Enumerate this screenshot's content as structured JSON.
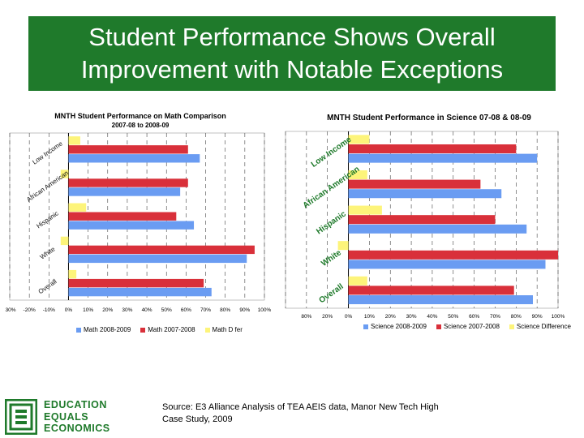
{
  "slide": {
    "title_line1": "Student Performance Shows Overall",
    "title_line2": "Improvement with Notable Exceptions",
    "source_line1": "Source:  E3 Alliance Analysis of TEA AEIS data, Manor New Tech High",
    "source_line2": "Case Study, 2009",
    "logo_line1": "EDUCATION",
    "logo_line2": "EQUALS",
    "logo_line3": "ECONOMICS"
  },
  "colors": {
    "title_bg": "#1f7a2b",
    "series_blue": "#6a9cf2",
    "series_red": "#d9303a",
    "series_yellow": "#fdf47a",
    "logo_green": "#1f7a2b"
  },
  "chart_data": [
    {
      "type": "bar",
      "orientation": "horizontal",
      "title": "MNTH Student Performance on Math Comparison",
      "subtitle": "2007-08 to 2008-09",
      "categories": [
        "Low Income",
        "African American",
        "Hispanic",
        "White",
        "Overall"
      ],
      "series": [
        {
          "name": "Math D fer",
          "color": "#fdf47a",
          "values": [
            6,
            -4,
            9,
            -4,
            4
          ]
        },
        {
          "name": "Math 2007-2008",
          "color": "#d9303a",
          "values": [
            61,
            61,
            55,
            95,
            69
          ]
        },
        {
          "name": "Math 2008-2009",
          "color": "#6a9cf2",
          "values": [
            67,
            57,
            64,
            91,
            73
          ]
        }
      ],
      "xlim": [
        -30,
        100
      ],
      "ticks": [
        "-30%",
        "-20%",
        "-10%",
        "0%",
        "10%",
        "20%",
        "30%",
        "40%",
        "50%",
        "60%",
        "70%",
        "80%",
        "90%",
        "100%"
      ],
      "legend": [
        "Math 2008-2009",
        "Math 2007-2008",
        "Math D fer"
      ],
      "legend_position": "bottom",
      "grid": "vertical dashed"
    },
    {
      "type": "bar",
      "orientation": "horizontal",
      "title": "MNTH Student Performance in Science 07-08 & 08-09",
      "categories": [
        "Low Income",
        "African American",
        "Hispanic",
        "White",
        "Overall"
      ],
      "series": [
        {
          "name": "Science Difference",
          "color": "#fdf47a",
          "values": [
            10,
            9,
            16,
            -5,
            9
          ]
        },
        {
          "name": "Science 2007-2008",
          "color": "#d9303a",
          "values": [
            80,
            63,
            70,
            100,
            79
          ]
        },
        {
          "name": "Science 2008-2009",
          "color": "#6a9cf2",
          "values": [
            90,
            73,
            85,
            94,
            88
          ]
        }
      ],
      "xlim": [
        -30,
        100
      ],
      "ticks": [
        "-30%",
        "-20%",
        "-10%",
        "0%",
        "10%",
        "20%",
        "30%",
        "40%",
        "50%",
        "60%",
        "70%",
        "80%",
        "90%",
        "100%"
      ],
      "tick_labels_visible": [
        "80%",
        "20%",
        "0%",
        "10%",
        "20%",
        "30%",
        "40%",
        "50%",
        "60%",
        "70%",
        "80%",
        "90%",
        "100%"
      ],
      "legend": [
        "Science 2008-2009",
        "Science 2007-2008",
        "Science Difference"
      ],
      "legend_position": "bottom",
      "grid": "vertical dashed"
    }
  ]
}
